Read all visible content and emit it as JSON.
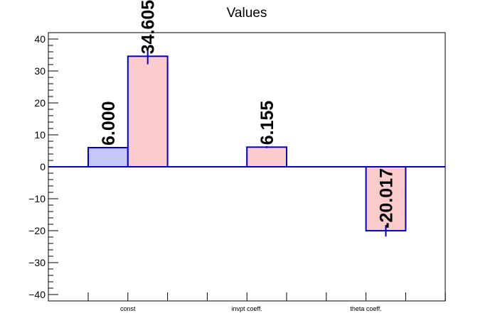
{
  "chart_data": {
    "type": "bar",
    "title": "Values",
    "categories": [
      "const",
      "invpt coeff.",
      "theta coeff."
    ],
    "ylim": [
      -42,
      42
    ],
    "yticks": [
      -40,
      -30,
      -20,
      -10,
      0,
      10,
      20,
      30,
      40
    ],
    "ytick_labels": [
      "−40",
      "−30",
      "−20",
      "−10",
      "0",
      "10",
      "20",
      "30",
      "40"
    ],
    "grid": false,
    "colors": {
      "series1_fill": "#c8c8f8",
      "series2_fill": "#fccccc",
      "edge": "#0000cc"
    },
    "series": [
      {
        "values": [
          6.0,
          null,
          null
        ],
        "errors": [
          0,
          null,
          null
        ],
        "labels": [
          "6.000",
          "",
          ""
        ]
      },
      {
        "values": [
          34.605,
          6.155,
          -20.017
        ],
        "errors": [
          2.5,
          0.3,
          1.8
        ],
        "labels": [
          "34.605",
          "6.155",
          "-20.017"
        ]
      }
    ]
  }
}
